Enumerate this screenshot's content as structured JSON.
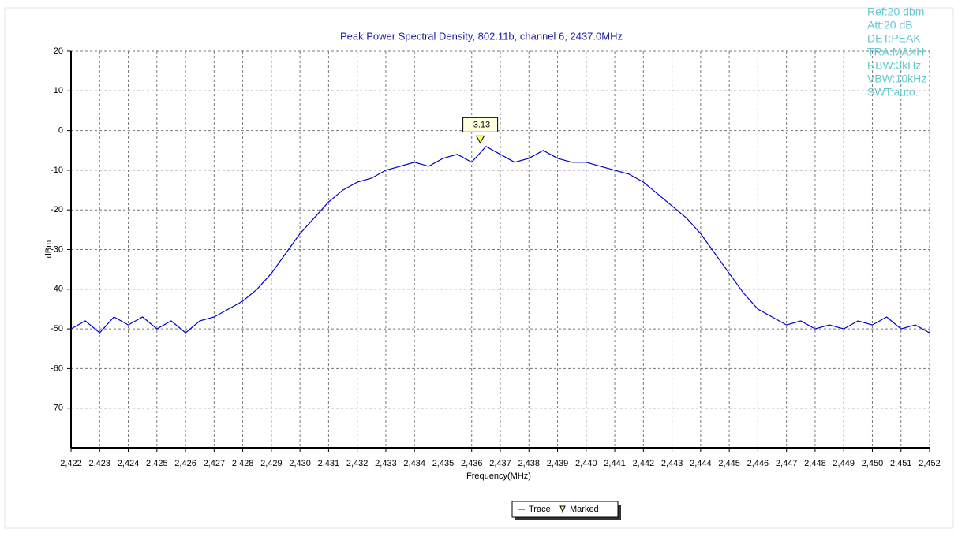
{
  "chart_data": {
    "type": "line",
    "title": "Peak Power Spectral Density, 802.11b, channel 6, 2437.0MHz",
    "xlabel": "Frequency(MHz)",
    "ylabel": "dBm",
    "info": [
      "Ref:20 dbm",
      "Att:20 dB",
      "DET:PEAK",
      "TRA:MAXH",
      "RBW:3kHz",
      "VBW:10kHz",
      "SWT:auto."
    ],
    "xlim": [
      2422,
      2452
    ],
    "ylim": [
      -80,
      20
    ],
    "yticks": [
      20,
      10,
      0,
      -10,
      -20,
      -30,
      -40,
      -50,
      -60,
      -70
    ],
    "xticks": [
      {
        "value": 2422,
        "label": "2,422"
      },
      {
        "value": 2423,
        "label": "2,423"
      },
      {
        "value": 2424,
        "label": "2,424"
      },
      {
        "value": 2425,
        "label": "2,425"
      },
      {
        "value": 2426,
        "label": "2,426"
      },
      {
        "value": 2427,
        "label": "2,427"
      },
      {
        "value": 2428,
        "label": "2,428"
      },
      {
        "value": 2429,
        "label": "2,429"
      },
      {
        "value": 2430,
        "label": "2,430"
      },
      {
        "value": 2431,
        "label": "2,431"
      },
      {
        "value": 2432,
        "label": "2,432"
      },
      {
        "value": 2433,
        "label": "2,433"
      },
      {
        "value": 2434,
        "label": "2,434"
      },
      {
        "value": 2435,
        "label": "2,435"
      },
      {
        "value": 2436,
        "label": "2,436"
      },
      {
        "value": 2437,
        "label": "2,437"
      },
      {
        "value": 2438,
        "label": "2,438"
      },
      {
        "value": 2439,
        "label": "2,439"
      },
      {
        "value": 2440,
        "label": "2,440"
      },
      {
        "value": 2441,
        "label": "2,441"
      },
      {
        "value": 2442,
        "label": "2,442"
      },
      {
        "value": 2443,
        "label": "2,443"
      },
      {
        "value": 2444,
        "label": "2,444"
      },
      {
        "value": 2445,
        "label": "2,445"
      },
      {
        "value": 2446,
        "label": "2,446"
      },
      {
        "value": 2447,
        "label": "2,447"
      },
      {
        "value": 2448,
        "label": "2,448"
      },
      {
        "value": 2449,
        "label": "2,449"
      },
      {
        "value": 2450,
        "label": "2,450"
      },
      {
        "value": 2451,
        "label": "2,451"
      },
      {
        "value": 2452,
        "label": "2,452"
      }
    ],
    "grid": true,
    "x": [
      2422,
      2422.5,
      2423,
      2423.5,
      2424,
      2424.5,
      2425,
      2425.5,
      2426,
      2426.5,
      2427,
      2427.5,
      2428,
      2428.5,
      2429,
      2429.5,
      2430,
      2430.5,
      2431,
      2431.5,
      2432,
      2432.5,
      2433,
      2433.5,
      2434,
      2434.5,
      2435,
      2435.5,
      2436,
      2436.5,
      2437,
      2437.5,
      2438,
      2438.5,
      2439,
      2439.5,
      2440,
      2440.5,
      2441,
      2441.5,
      2442,
      2442.5,
      2443,
      2443.5,
      2444,
      2444.5,
      2445,
      2445.5,
      2446,
      2446.5,
      2447,
      2447.5,
      2448,
      2448.5,
      2449,
      2449.5,
      2450,
      2450.5,
      2451,
      2451.5,
      2452
    ],
    "series": [
      {
        "name": "Trace",
        "color": "#0000c8",
        "values": [
          -50,
          -48,
          -51,
          -47,
          -49,
          -47,
          -50,
          -48,
          -51,
          -48,
          -47,
          -45,
          -43,
          -40,
          -36,
          -31,
          -26,
          -22,
          -18,
          -15,
          -13,
          -12,
          -10,
          -9,
          -8,
          -9,
          -7,
          -6,
          -8,
          -4,
          -6,
          -8,
          -7,
          -5,
          -7,
          -8,
          -8,
          -9,
          -10,
          -11,
          -13,
          -16,
          -19,
          -22,
          -26,
          -31,
          -36,
          -41,
          -45,
          -47,
          -49,
          -48,
          -50,
          -49,
          -50,
          -48,
          -49,
          -47,
          -50,
          -49,
          -51
        ]
      }
    ],
    "marker": {
      "name": "Marked",
      "x": 2436.3,
      "value": -3.13,
      "color": "#ffff66"
    }
  }
}
